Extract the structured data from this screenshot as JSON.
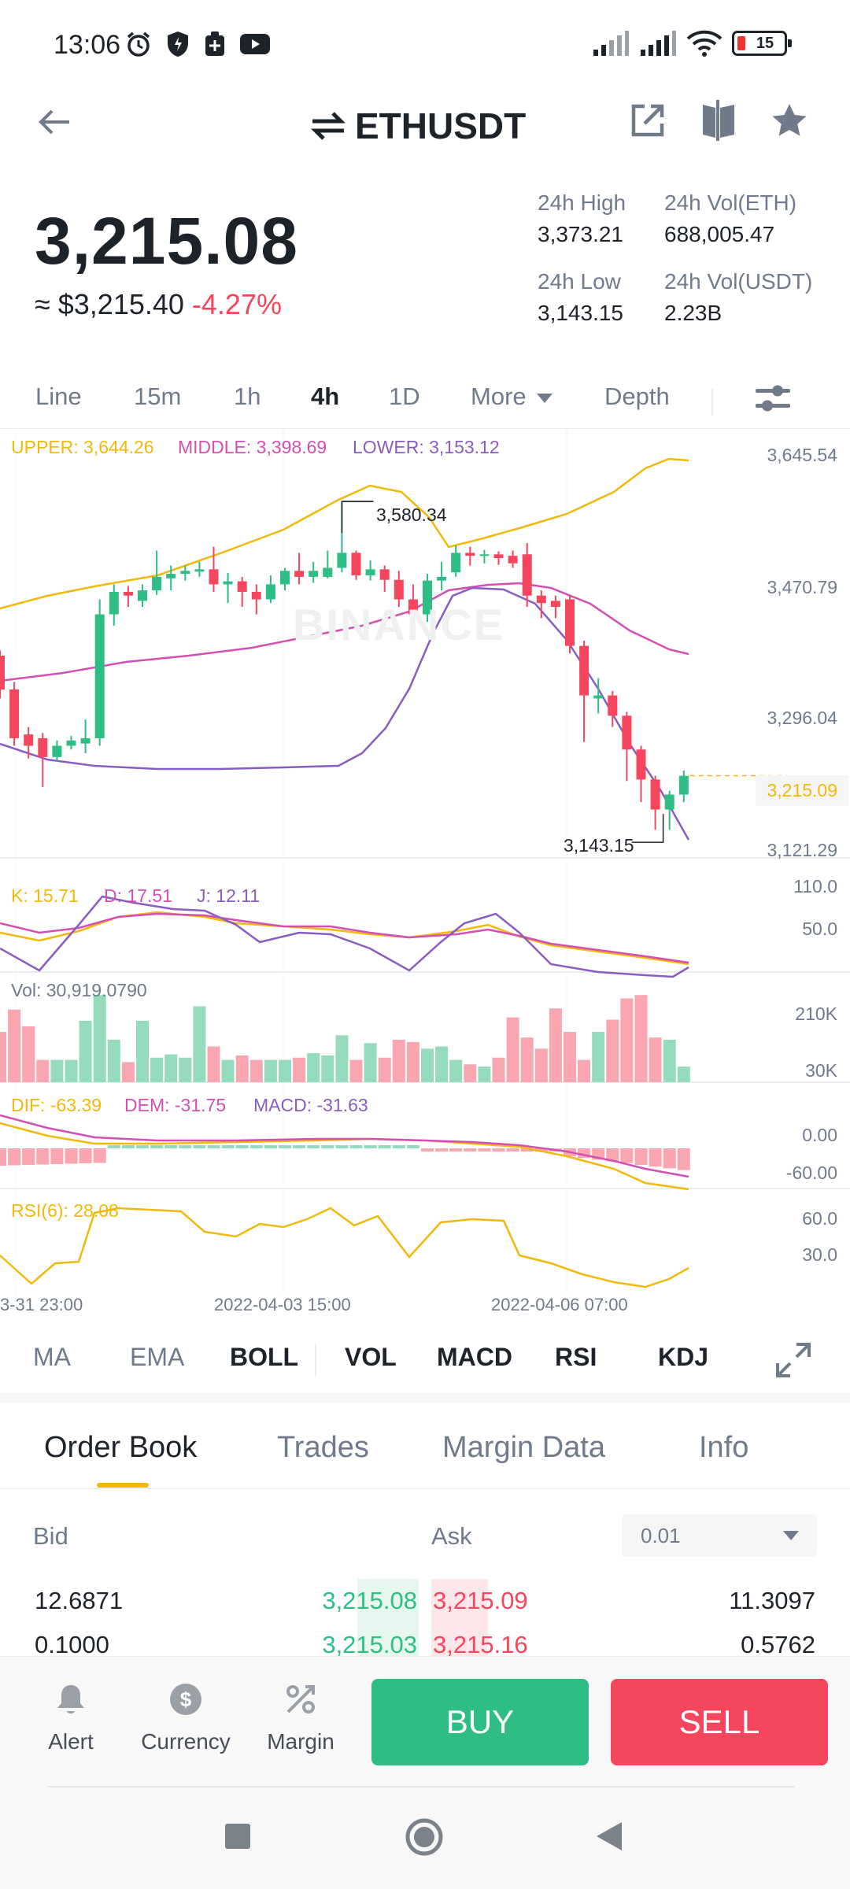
{
  "status": {
    "time": "13:06",
    "battery": "15",
    "icons": [
      "alarm-icon",
      "shield-icon",
      "cart-icon",
      "youtube-icon",
      "signal-icon",
      "signal-icon",
      "wifi-icon",
      "battery-icon"
    ]
  },
  "header": {
    "pair": "ETHUSDT",
    "actions": [
      "share-icon",
      "compare-icon",
      "star-icon"
    ]
  },
  "ticker": {
    "price": "3,215.08",
    "approx": "≈ $3,215.40",
    "change": "-4.27%",
    "high_label": "24h High",
    "high": "3,373.21",
    "low_label": "24h Low",
    "low": "3,143.15",
    "vol_eth_label": "24h Vol(ETH)",
    "vol_eth": "688,005.47",
    "vol_usdt_label": "24h Vol(USDT)",
    "vol_usdt": "2.23B"
  },
  "intervals": {
    "line": "Line",
    "m15": "15m",
    "h1": "1h",
    "h4": "4h",
    "d1": "1D",
    "more": "More",
    "depth": "Depth",
    "active": "4h"
  },
  "chart": {
    "boll": {
      "upper": "UPPER: 3,644.26",
      "middle": "MIDDLE: 3,398.69",
      "lower": "LOWER: 3,153.12"
    },
    "price_axis": [
      "3,645.54",
      "3,470.79",
      "3,296.04",
      "3,121.29"
    ],
    "last_price": "3,215.09",
    "high_marker": "3,580.34",
    "low_marker": "3,143.15",
    "watermark": "BINANCE",
    "kdj": {
      "k": "K: 15.71",
      "d": "D: 17.51",
      "j": "J: 12.11",
      "axis": [
        "110.0",
        "50.0"
      ]
    },
    "vol": {
      "label": "Vol: 30,919.0790",
      "axis": [
        "210K",
        "30K"
      ]
    },
    "macd": {
      "dif": "DIF: -63.39",
      "dem": "DEM: -31.75",
      "macd": "MACD: -31.63",
      "axis": [
        "0.00",
        "-60.00"
      ]
    },
    "rsi": {
      "label": "RSI(6): 28.08",
      "axis": [
        "60.0",
        "30.0"
      ]
    },
    "dates": [
      "3-31 23:00",
      "2022-04-03 15:00",
      "2022-04-06 07:00"
    ],
    "colors": {
      "up": "#2ebd85",
      "down": "#f6465d",
      "upper": "#f0b90b",
      "middle": "#d44fb4",
      "lower": "#8a5cc2"
    }
  },
  "chart_data": {
    "type": "candlestick",
    "candles": [
      {
        "o": 3375,
        "c": 3330,
        "h": 3382,
        "l": 3318
      },
      {
        "o": 3330,
        "c": 3265,
        "h": 3340,
        "l": 3255
      },
      {
        "o": 3270,
        "c": 3255,
        "h": 3280,
        "l": 3238
      },
      {
        "o": 3265,
        "c": 3240,
        "h": 3272,
        "l": 3200
      },
      {
        "o": 3240,
        "c": 3255,
        "h": 3262,
        "l": 3235
      },
      {
        "o": 3255,
        "c": 3262,
        "h": 3268,
        "l": 3250
      },
      {
        "o": 3258,
        "c": 3265,
        "h": 3290,
        "l": 3245
      },
      {
        "o": 3265,
        "c": 3430,
        "h": 3450,
        "l": 3255
      },
      {
        "o": 3430,
        "c": 3460,
        "h": 3470,
        "l": 3415
      },
      {
        "o": 3460,
        "c": 3455,
        "h": 3468,
        "l": 3440
      },
      {
        "o": 3448,
        "c": 3462,
        "h": 3470,
        "l": 3440
      },
      {
        "o": 3462,
        "c": 3480,
        "h": 3515,
        "l": 3456
      },
      {
        "o": 3478,
        "c": 3484,
        "h": 3495,
        "l": 3462
      },
      {
        "o": 3484,
        "c": 3488,
        "h": 3495,
        "l": 3475
      },
      {
        "o": 3487,
        "c": 3490,
        "h": 3500,
        "l": 3480
      },
      {
        "o": 3490,
        "c": 3470,
        "h": 3520,
        "l": 3460
      },
      {
        "o": 3470,
        "c": 3474,
        "h": 3485,
        "l": 3445
      },
      {
        "o": 3474,
        "c": 3460,
        "h": 3480,
        "l": 3440
      },
      {
        "o": 3460,
        "c": 3450,
        "h": 3470,
        "l": 3430
      },
      {
        "o": 3450,
        "c": 3470,
        "h": 3482,
        "l": 3445
      },
      {
        "o": 3470,
        "c": 3488,
        "h": 3492,
        "l": 3462
      },
      {
        "o": 3488,
        "c": 3480,
        "h": 3512,
        "l": 3470
      },
      {
        "o": 3480,
        "c": 3488,
        "h": 3500,
        "l": 3472
      },
      {
        "o": 3480,
        "c": 3492,
        "h": 3515,
        "l": 3478
      },
      {
        "o": 3492,
        "c": 3512,
        "h": 3580,
        "l": 3486
      },
      {
        "o": 3512,
        "c": 3482,
        "h": 3515,
        "l": 3476
      },
      {
        "o": 3482,
        "c": 3490,
        "h": 3502,
        "l": 3475
      },
      {
        "o": 3490,
        "c": 3476,
        "h": 3495,
        "l": 3460
      },
      {
        "o": 3476,
        "c": 3450,
        "h": 3488,
        "l": 3440
      },
      {
        "o": 3450,
        "c": 3430,
        "h": 3470,
        "l": 3425
      },
      {
        "o": 3430,
        "c": 3475,
        "h": 3484,
        "l": 3420
      },
      {
        "o": 3475,
        "c": 3480,
        "h": 3500,
        "l": 3462
      },
      {
        "o": 3486,
        "c": 3512,
        "h": 3522,
        "l": 3480
      },
      {
        "o": 3512,
        "c": 3508,
        "h": 3520,
        "l": 3495
      },
      {
        "o": 3508,
        "c": 3510,
        "h": 3516,
        "l": 3498
      },
      {
        "o": 3510,
        "c": 3505,
        "h": 3514,
        "l": 3496
      },
      {
        "o": 3508,
        "c": 3498,
        "h": 3515,
        "l": 3492
      },
      {
        "o": 3510,
        "c": 3455,
        "h": 3525,
        "l": 3440
      },
      {
        "o": 3455,
        "c": 3445,
        "h": 3462,
        "l": 3425
      },
      {
        "o": 3448,
        "c": 3440,
        "h": 3455,
        "l": 3425
      },
      {
        "o": 3450,
        "c": 3388,
        "h": 3456,
        "l": 3378
      },
      {
        "o": 3388,
        "c": 3322,
        "h": 3395,
        "l": 3260
      },
      {
        "o": 3318,
        "c": 3322,
        "h": 3345,
        "l": 3298
      },
      {
        "o": 3322,
        "c": 3295,
        "h": 3328,
        "l": 3280
      },
      {
        "o": 3295,
        "c": 3250,
        "h": 3300,
        "l": 3208
      },
      {
        "o": 3250,
        "c": 3210,
        "h": 3255,
        "l": 3180
      },
      {
        "o": 3210,
        "c": 3170,
        "h": 3215,
        "l": 3143
      },
      {
        "o": 3170,
        "c": 3190,
        "h": 3195,
        "l": 3143
      },
      {
        "o": 3190,
        "c": 3215,
        "h": 3222,
        "l": 3180
      }
    ],
    "price_ticks": [
      3645.54,
      3470.79,
      3296.04,
      3121.29
    ],
    "high": 3580.34,
    "low": 3143.15,
    "last": 3215.09
  },
  "indicator_tabs": {
    "ma": "MA",
    "ema": "EMA",
    "boll": "BOLL",
    "vol": "VOL",
    "macd": "MACD",
    "rsi": "RSI",
    "kdj": "KDJ"
  },
  "orderbook": {
    "tabs": {
      "book": "Order Book",
      "trades": "Trades",
      "margin": "Margin Data",
      "info": "Info"
    },
    "bid_label": "Bid",
    "ask_label": "Ask",
    "precision": "0.01",
    "rows": [
      {
        "bid_qty": "12.6871",
        "bid_price": "3,215.08",
        "ask_price": "3,215.09",
        "ask_qty": "11.3097"
      },
      {
        "bid_qty": "0.1000",
        "bid_price": "3,215.03",
        "ask_price": "3,215.16",
        "ask_qty": "0.5762"
      }
    ]
  },
  "bottom": {
    "alert": "Alert",
    "currency": "Currency",
    "margin": "Margin",
    "buy": "BUY",
    "sell": "SELL"
  }
}
